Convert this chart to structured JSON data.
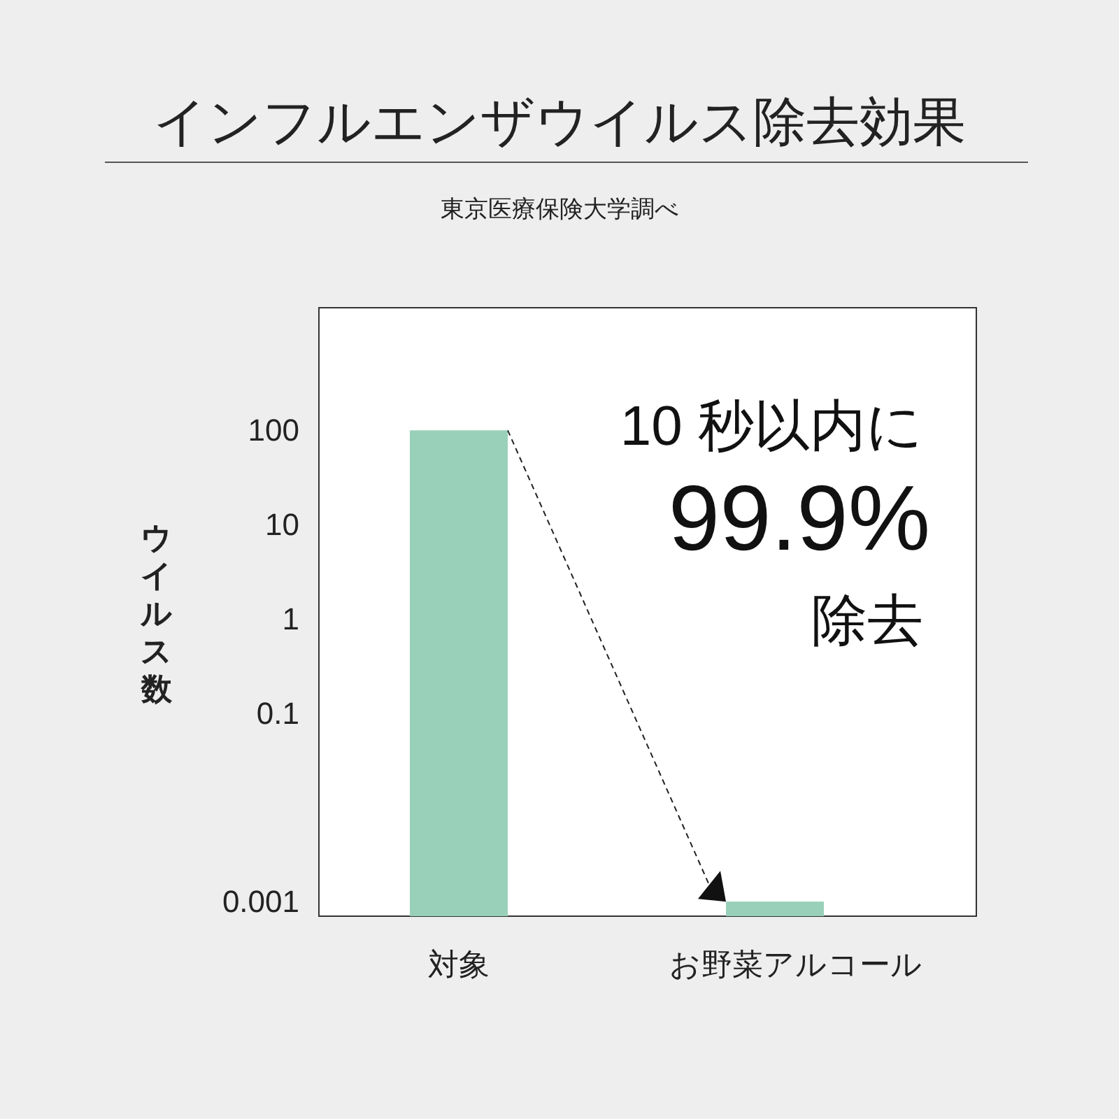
{
  "chart_data": {
    "type": "bar",
    "title": "インフルエンザウイルス除去効果",
    "subtitle": "東京医療保険大学調べ",
    "ylabel": "ウイルス数",
    "categories": [
      "対象",
      "お野菜アルコール"
    ],
    "values": [
      100,
      0.001
    ],
    "color": "#99d0b9",
    "log": true,
    "ylim": [
      0.0007,
      2000
    ],
    "yticks": [
      100,
      10,
      1,
      0.1,
      0.001
    ],
    "grid": false,
    "annotations": [
      "10 秒以内に",
      "99.9%",
      "除去"
    ]
  }
}
